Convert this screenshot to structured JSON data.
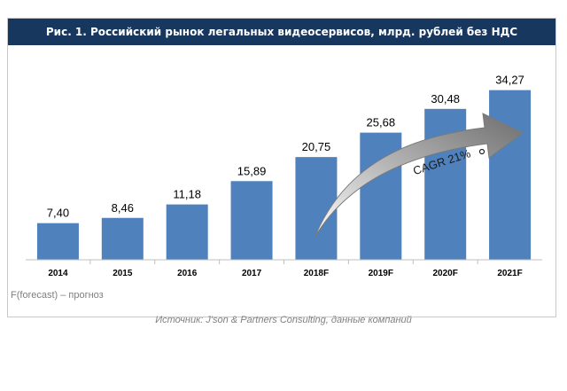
{
  "chart_data": {
    "type": "bar",
    "title": "Рис. 1. Российский  рынок легальных видеосервисов, млрд. рублей без НДС",
    "categories": [
      "2014",
      "2015",
      "2016",
      "2017",
      "2018F",
      "2019F",
      "2020F",
      "2021F"
    ],
    "values": [
      7.4,
      8.46,
      11.18,
      15.89,
      20.75,
      25.68,
      30.48,
      34.27
    ],
    "value_labels": [
      "7,40",
      "8,46",
      "11,18",
      "15,89",
      "20,75",
      "25,68",
      "30,48",
      "34,27"
    ],
    "ylim": [
      0,
      36
    ],
    "grid": false,
    "bar_color": "#4f81bd",
    "annotation": "CAGR 21%",
    "footnote": "F(forecast) – прогноз",
    "source": "Источник: J'son & Partners Consulting, данные компаний"
  }
}
